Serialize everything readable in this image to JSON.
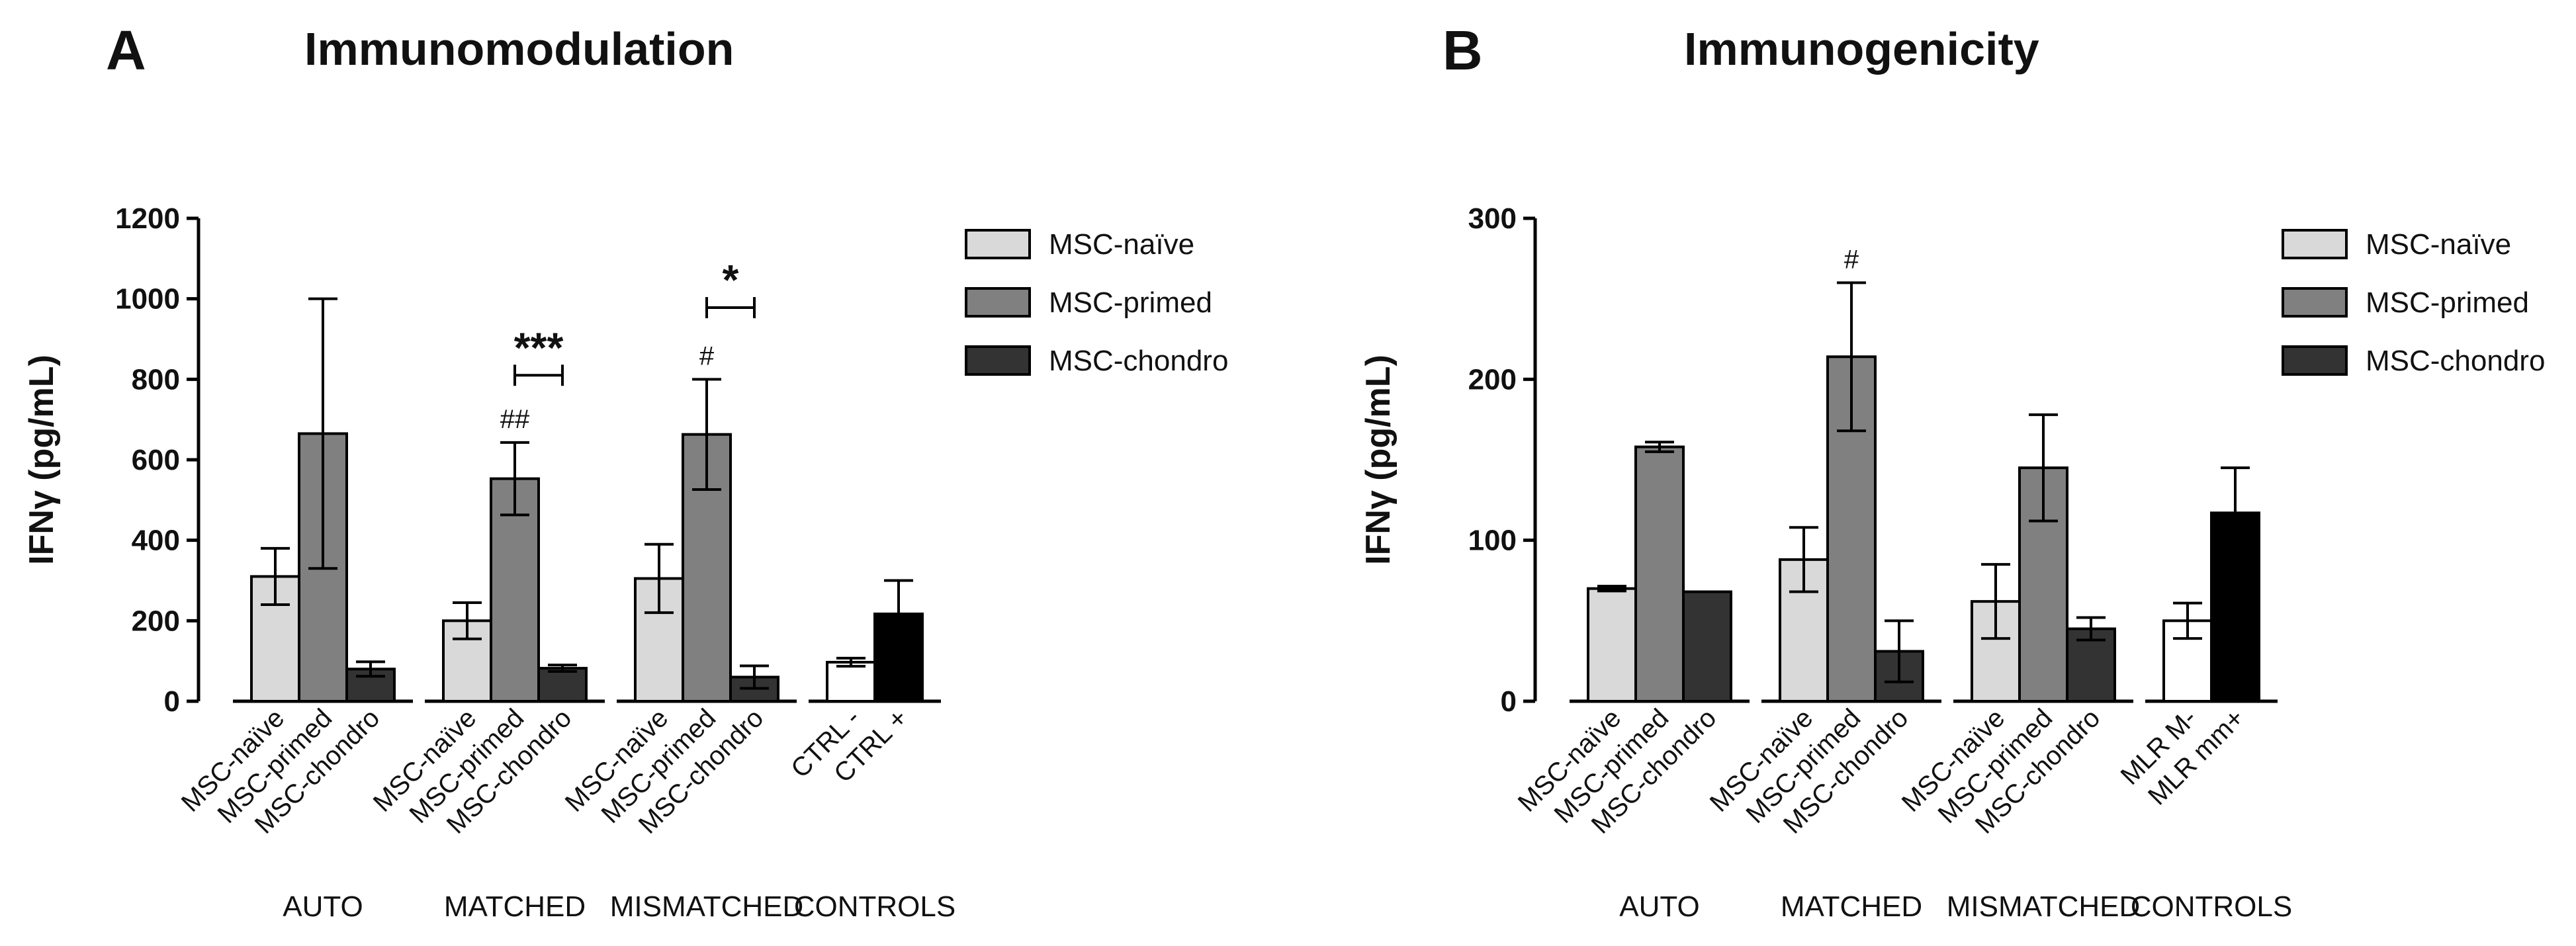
{
  "chart_data": [
    {
      "panel_letter": "A",
      "title": "Immunomodulation",
      "type": "bar",
      "ylabel": "IFNγ (pg/mL)",
      "ylim": [
        0,
        1200
      ],
      "yticks": [
        0,
        200,
        400,
        600,
        800,
        1000,
        1200
      ],
      "legend": {
        "position": "right",
        "entries": [
          {
            "label": "MSC-naïve",
            "color": "#d9d9d9"
          },
          {
            "label": "MSC-primed",
            "color": "#808080"
          },
          {
            "label": "MSC-chondro",
            "color": "#333333"
          }
        ]
      },
      "groups": [
        {
          "name": "AUTO",
          "bars": [
            {
              "label": "MSC-naïve",
              "value": 310,
              "error": 70,
              "color": "#d9d9d9"
            },
            {
              "label": "MSC-primed",
              "value": 665,
              "error": 335,
              "color": "#808080"
            },
            {
              "label": "MSC-chondro",
              "value": 80,
              "error": 18,
              "color": "#333333"
            }
          ]
        },
        {
          "name": "MATCHED",
          "bars": [
            {
              "label": "MSC-naïve",
              "value": 200,
              "error": 45,
              "color": "#d9d9d9"
            },
            {
              "label": "MSC-primed",
              "value": 553,
              "error": 90,
              "color": "#808080",
              "marker": "##"
            },
            {
              "label": "MSC-chondro",
              "value": 82,
              "error": 8,
              "color": "#333333"
            }
          ]
        },
        {
          "name": "MISMATCHED",
          "bars": [
            {
              "label": "MSC-naïve",
              "value": 305,
              "error": 85,
              "color": "#d9d9d9"
            },
            {
              "label": "MSC-primed",
              "value": 663,
              "error": 137,
              "color": "#808080",
              "marker": "#"
            },
            {
              "label": "MSC-chondro",
              "value": 60,
              "error": 28,
              "color": "#333333"
            }
          ]
        },
        {
          "name": "CONTROLS",
          "bars": [
            {
              "label": "CTRL -",
              "value": 97,
              "error": 10,
              "color": "#ffffff"
            },
            {
              "label": "CTRL +",
              "value": 217,
              "error": 83,
              "color": "#000000"
            }
          ]
        }
      ],
      "significance": [
        {
          "group": 1,
          "from": 1,
          "to": 2,
          "label": "***",
          "y": 810
        },
        {
          "group": 2,
          "from": 1,
          "to": 2,
          "label": "*",
          "y": 978
        }
      ]
    },
    {
      "panel_letter": "B",
      "title": "Immunogenicity",
      "type": "bar",
      "ylabel": "IFNγ (pg/mL)",
      "ylim": [
        0,
        300
      ],
      "yticks": [
        0,
        100,
        200,
        300
      ],
      "legend": {
        "position": "right",
        "entries": [
          {
            "label": "MSC-naïve",
            "color": "#d9d9d9"
          },
          {
            "label": "MSC-primed",
            "color": "#808080"
          },
          {
            "label": "MSC-chondro",
            "color": "#333333"
          }
        ]
      },
      "groups": [
        {
          "name": "AUTO",
          "bars": [
            {
              "label": "MSC-naïve",
              "value": 70,
              "error": 1.5,
              "color": "#d9d9d9"
            },
            {
              "label": "MSC-primed",
              "value": 158,
              "error": 3,
              "color": "#808080"
            },
            {
              "label": "MSC-chondro",
              "value": 68,
              "error": 0,
              "color": "#333333"
            }
          ]
        },
        {
          "name": "MATCHED",
          "bars": [
            {
              "label": "MSC-naïve",
              "value": 88,
              "error": 20,
              "color": "#d9d9d9"
            },
            {
              "label": "MSC-primed",
              "value": 214,
              "error": 46,
              "color": "#808080",
              "marker": "#"
            },
            {
              "label": "MSC-chondro",
              "value": 31,
              "error": 19,
              "color": "#333333"
            }
          ]
        },
        {
          "name": "MISMATCHED",
          "bars": [
            {
              "label": "MSC-naïve",
              "value": 62,
              "error": 23,
              "color": "#d9d9d9"
            },
            {
              "label": "MSC-primed",
              "value": 145,
              "error": 33,
              "color": "#808080"
            },
            {
              "label": "MSC-chondro",
              "value": 45,
              "error": 7,
              "color": "#333333"
            }
          ]
        },
        {
          "name": "CONTROLS",
          "bars": [
            {
              "label": "MLR M-",
              "value": 50,
              "error": 11,
              "color": "#ffffff"
            },
            {
              "label": "MLR mm+",
              "value": 117,
              "error": 28,
              "color": "#000000"
            }
          ]
        }
      ],
      "significance": []
    }
  ]
}
